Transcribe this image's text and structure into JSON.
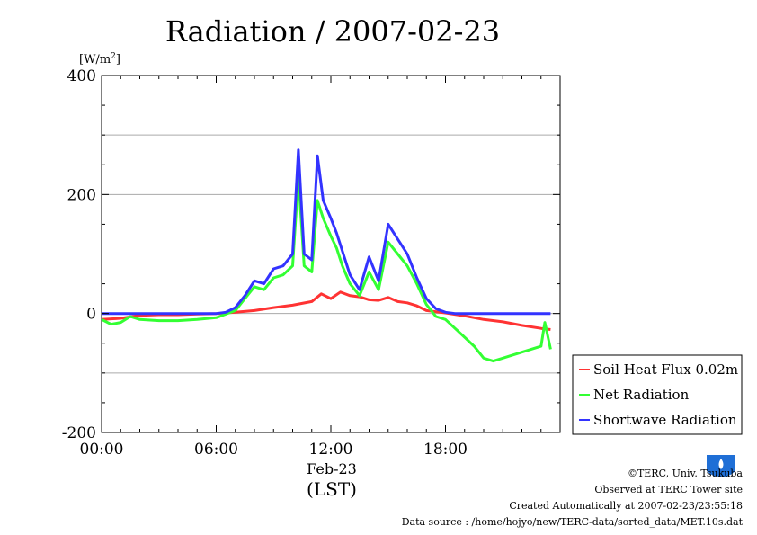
{
  "chart_data": {
    "type": "line",
    "title": "Radiation / 2007-02-23",
    "ylabel": "[W/m",
    "ylabel_sup": "2",
    "ylabel_close": "]",
    "ylim": [
      -200,
      400
    ],
    "yticks": [
      -200,
      0,
      200,
      400
    ],
    "ytick_labels": [
      "-200",
      "0",
      "200",
      "400"
    ],
    "xlim": [
      0,
      24
    ],
    "xticks": [
      0,
      6,
      12,
      18
    ],
    "xtick_labels": [
      "00:00",
      "06:00",
      "12:00",
      "18:00"
    ],
    "date_label": "Feb-23",
    "xlabel": "(LST)",
    "grid": true,
    "legend_position": "right",
    "colors": {
      "soil": "#ff3333",
      "net": "#33ff33",
      "shortwave": "#3333ff"
    },
    "series": [
      {
        "name": "Soil Heat Flux 0.02m",
        "color": "#ff3333",
        "x": [
          0,
          1,
          2,
          3,
          4,
          5,
          6,
          7,
          8,
          9,
          10,
          10.5,
          11,
          11.5,
          12,
          12.5,
          13,
          13.5,
          14,
          14.5,
          15,
          15.5,
          16,
          16.5,
          17,
          18,
          19,
          20,
          21,
          22,
          23,
          23.5
        ],
        "y": [
          -10,
          -8,
          -3,
          -2,
          -2,
          -1,
          0,
          2,
          5,
          10,
          14,
          17,
          20,
          33,
          25,
          36,
          30,
          28,
          23,
          22,
          27,
          20,
          18,
          13,
          5,
          1,
          -4,
          -10,
          -14,
          -20,
          -25,
          -27
        ]
      },
      {
        "name": "Net Radiation",
        "color": "#33ff33",
        "x": [
          0,
          0.5,
          1,
          1.5,
          2,
          3,
          4,
          5,
          6,
          7,
          7.5,
          8,
          8.5,
          9,
          9.5,
          10,
          10.3,
          10.6,
          11,
          11.3,
          11.6,
          12,
          12.3,
          12.6,
          13,
          13.5,
          14,
          14.5,
          15,
          15.5,
          16,
          16.5,
          17,
          17.5,
          18,
          18.5,
          19,
          19.5,
          20,
          20.5,
          21,
          22,
          23,
          23.2,
          23.5
        ],
        "y": [
          -10,
          -18,
          -15,
          -5,
          -10,
          -12,
          -12,
          -10,
          -7,
          5,
          25,
          45,
          40,
          60,
          65,
          80,
          230,
          80,
          70,
          190,
          160,
          130,
          110,
          80,
          50,
          30,
          70,
          40,
          120,
          100,
          80,
          50,
          15,
          -5,
          -10,
          -25,
          -40,
          -55,
          -75,
          -80,
          -75,
          -65,
          -55,
          -15,
          -60
        ]
      },
      {
        "name": "Shortwave Radiation",
        "color": "#3333ff",
        "x": [
          0,
          1,
          2,
          3,
          4,
          5,
          6,
          6.5,
          7,
          7.5,
          8,
          8.5,
          9,
          9.5,
          10,
          10.3,
          10.6,
          11,
          11.3,
          11.6,
          12,
          12.3,
          12.6,
          13,
          13.5,
          14,
          14.5,
          15,
          15.5,
          16,
          16.5,
          17,
          17.5,
          18,
          18.5,
          19,
          20,
          21,
          22,
          23,
          23.5
        ],
        "y": [
          0,
          0,
          0,
          0,
          0,
          0,
          0,
          2,
          10,
          30,
          55,
          50,
          75,
          80,
          100,
          275,
          100,
          90,
          265,
          190,
          160,
          135,
          105,
          65,
          40,
          95,
          55,
          150,
          125,
          100,
          60,
          25,
          8,
          2,
          0,
          0,
          0,
          0,
          0,
          0,
          0
        ]
      }
    ]
  },
  "credits": {
    "copyright": "©TERC, Univ. Tsukuba",
    "observed": "Observed at TERC Tower site",
    "created": "Created Automatically at 2007-02-23/23:55:18",
    "source": "Data source : /home/hojyo/new/TERC-data/sorted_data/MET.10s.dat"
  },
  "logo": {
    "text": "TERC",
    "color": "#1f6fd6",
    "icon": "terc-logo-icon"
  }
}
